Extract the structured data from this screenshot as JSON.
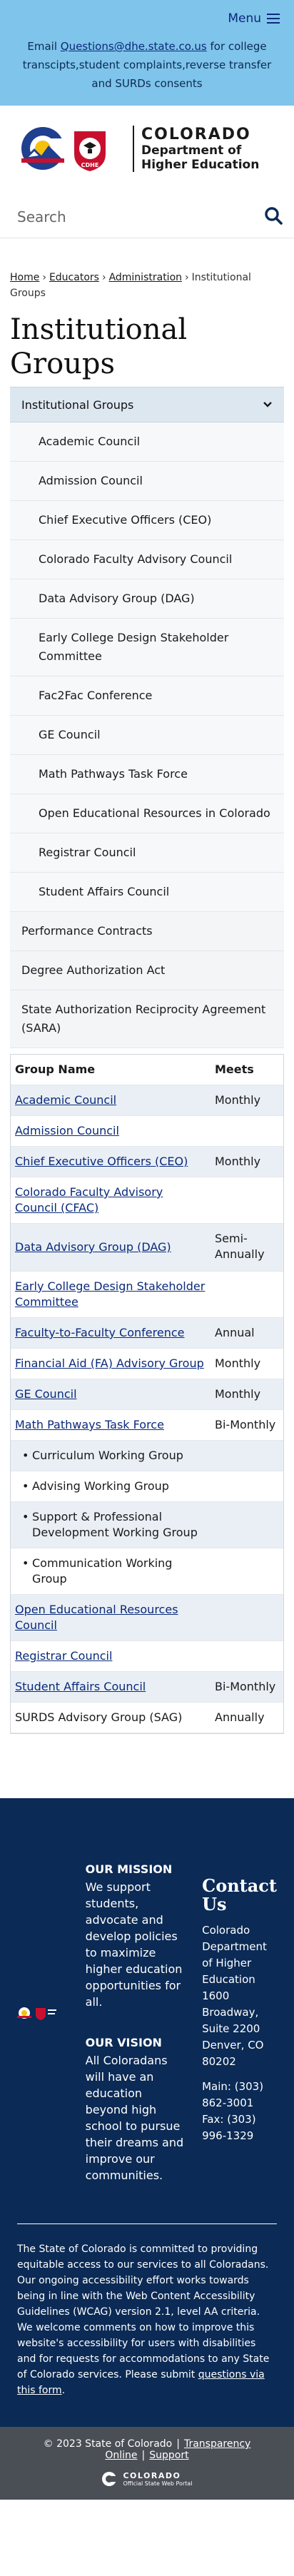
{
  "header": {
    "menu_label": "Menu",
    "contact_prefix": "Email ",
    "contact_email": "Questions@dhe.state.co.us",
    "contact_suffix": " for college transcipts,student complaints,reverse transfer and SURDs consents"
  },
  "logo": {
    "state_word": "COLORADO",
    "dept_line1": "Department of",
    "dept_line2": "Higher Education",
    "cdhe_badge": "CDHE"
  },
  "search": {
    "placeholder": "Search"
  },
  "breadcrumb": {
    "home": "Home",
    "educators": "Educators",
    "administration": "Administration",
    "current": "Institutional Groups",
    "sep": "›"
  },
  "page_title": "Institutional Groups",
  "sidenav": {
    "heading": "Institutional Groups",
    "sub_items": [
      "Academic Council",
      "Admission Council",
      "Chief Executive Officers (CEO)",
      "Colorado Faculty Advisory Council",
      "Data Advisory Group (DAG)",
      "Early College Design Stakeholder Committee",
      "Fac2Fac Conference",
      "GE Council",
      "Math Pathways Task Force",
      "Open Educational Resources in Colorado",
      "Registrar Council",
      "Student Affairs Council"
    ],
    "top_items": [
      "Performance Contracts",
      "Degree Authorization Act",
      "State Authorization Reciprocity Agreement (SARA)"
    ]
  },
  "table": {
    "col_name": "Group Name",
    "col_meets": "Meets",
    "rows": [
      {
        "name": "Academic Council",
        "meets": "Monthly"
      },
      {
        "name": "Admission Council",
        "meets": ""
      },
      {
        "name": "Chief Executive Officers (CEO)",
        "meets": "Monthly"
      },
      {
        "name": "Colorado Faculty Advisory Council (CFAC)",
        "meets": ""
      },
      {
        "name": "Data Advisory Group (DAG)",
        "meets": "Semi-Annually"
      },
      {
        "name": "Early College Design Stakeholder Committee",
        "meets": ""
      },
      {
        "name": "Faculty-to-Faculty Conference",
        "meets": "Annual"
      },
      {
        "name": "Financial Aid (FA) Advisory Group",
        "meets": "Monthly"
      },
      {
        "name": "GE Council",
        "meets": "Monthly"
      },
      {
        "name": "Math Pathways Task Force",
        "meets": "Bi-Monthly"
      },
      {
        "name": "Curriculum Working Group",
        "meets": ""
      },
      {
        "name": "Advising Working Group",
        "meets": ""
      },
      {
        "name": "Support & Professional Development Working Group",
        "meets": ""
      },
      {
        "name": "Communication Working Group",
        "meets": ""
      },
      {
        "name": "Open Educational Resources Council",
        "meets": ""
      },
      {
        "name": "Registrar Council",
        "meets": ""
      },
      {
        "name": "Student Affairs Council",
        "meets": "Bi-Monthly"
      },
      {
        "name": "SURDS Advisory Group (SAG)",
        "meets": "Annually"
      }
    ]
  },
  "footer": {
    "mission_title": "OUR MISSION",
    "mission_text": "We support students, advocate and develop policies to maximize higher education opportunities for all.",
    "vision_title": "OUR VISION",
    "vision_text": "All Coloradans will have an education beyond high school to pursue their dreams and improve our communities.",
    "contact_title": "Contact Us",
    "address": "Colorado Department of Higher Education 1600 Broadway, Suite 2200 Denver, CO 80202",
    "phones": "Main: (303) 862-3001 Fax: (303) 996-1329",
    "accessibility_text": "The State of Colorado is committed to providing equitable access to our services to all Coloradans. Our ongoing accessibility effort works towards being in line with the Web Content Accessibility Guidelines (WCAG) version 2.1, level AA criteria. We welcome comments on how to improve this website's accessibility for users with disabilities and for requests for accommodations to any State of Colorado services. Please submit ",
    "accessibility_link": "questions via this form",
    "accessibility_end": "."
  },
  "bottom": {
    "copyright": "© 2023 State of Colorado",
    "transparency": "Transparency Online",
    "support": "Support",
    "brand_word": "COLORADO",
    "brand_sub": "Official State Web Portal"
  },
  "colors": {
    "topbar": "#7fc4ea",
    "navy": "#0b2a55",
    "link": "#0a2a7a",
    "nav_head": "#dde7f0",
    "row_shade": "#e9eff5",
    "bottom_bar": "#4a4e55"
  }
}
